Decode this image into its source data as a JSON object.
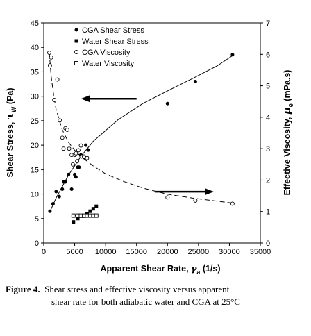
{
  "chart_data": {
    "type": "scatter",
    "xlabel_main": "Apparent Shear Rate, ",
    "xlabel_sym": "γ",
    "xlabel_sub": "a",
    "xlabel_unit": " (1/s)",
    "ylabel_main": "Shear Stress, ",
    "ylabel_sym": "τ",
    "ylabel_sub": "W",
    "ylabel_unit": " (Pa)",
    "y2label_main": "Effective Viscosity, ",
    "y2label_sym": "μ",
    "y2label_sub": "e",
    "y2label_unit": " (mPa.s)",
    "xlim": [
      0,
      35000
    ],
    "ylim": [
      0,
      45
    ],
    "y2lim": [
      0,
      7
    ],
    "x_ticks": [
      "0",
      "5000",
      "10000",
      "15000",
      "20000",
      "25000",
      "30000",
      "35000"
    ],
    "y_ticks": [
      "0",
      "5",
      "10",
      "15",
      "20",
      "25",
      "30",
      "35",
      "40",
      "45"
    ],
    "y2_ticks": [
      "0",
      "1",
      "2",
      "3",
      "4",
      "5",
      "6",
      "7"
    ],
    "grid": false,
    "legend_position": "top-left",
    "series": [
      {
        "name": "CGA Shear Stress",
        "marker": "filled-circle",
        "axis": "left",
        "points": [
          [
            1000,
            6.5
          ],
          [
            1500,
            8
          ],
          [
            2000,
            10.5
          ],
          [
            2500,
            9.5
          ],
          [
            3000,
            11
          ],
          [
            3200,
            12.5
          ],
          [
            3500,
            12.5
          ],
          [
            4000,
            14
          ],
          [
            4500,
            11
          ],
          [
            5000,
            14
          ],
          [
            5200,
            13.5
          ],
          [
            5500,
            15.5
          ],
          [
            5700,
            15.5
          ],
          [
            6000,
            18
          ],
          [
            6500,
            17.5
          ],
          [
            6800,
            20
          ],
          [
            7000,
            17.5
          ],
          [
            7200,
            19
          ],
          [
            20000,
            28.5
          ],
          [
            24500,
            33
          ],
          [
            30500,
            38.5
          ]
        ]
      },
      {
        "name": "Water Shear Stress",
        "marker": "filled-square",
        "axis": "left",
        "points": [
          [
            4800,
            4.3
          ],
          [
            5500,
            5
          ],
          [
            6000,
            5.5
          ],
          [
            6500,
            5.5
          ],
          [
            7000,
            6
          ],
          [
            7500,
            6.5
          ],
          [
            8000,
            7
          ],
          [
            8500,
            7.5
          ]
        ]
      },
      {
        "name": "CGA Viscosity",
        "marker": "open-circle",
        "axis": "right",
        "points": [
          [
            900,
            6.05
          ],
          [
            1000,
            5.65
          ],
          [
            1200,
            5.9
          ],
          [
            1700,
            4.55
          ],
          [
            2200,
            5.2
          ],
          [
            2600,
            3.9
          ],
          [
            3000,
            3.35
          ],
          [
            3200,
            3.0
          ],
          [
            3500,
            3.65
          ],
          [
            3800,
            3.6
          ],
          [
            4100,
            3.0
          ],
          [
            4500,
            2.8
          ],
          [
            4700,
            2.5
          ],
          [
            5000,
            2.8
          ],
          [
            5200,
            2.85
          ],
          [
            5400,
            2.6
          ],
          [
            5600,
            2.95
          ],
          [
            6000,
            3.1
          ],
          [
            6100,
            2.75
          ],
          [
            6500,
            2.75
          ],
          [
            7000,
            2.7
          ],
          [
            20000,
            1.45
          ],
          [
            24500,
            1.35
          ],
          [
            30500,
            1.25
          ]
        ]
      },
      {
        "name": "Water Viscosity",
        "marker": "open-square",
        "axis": "right",
        "points": [
          [
            4800,
            0.87
          ],
          [
            5500,
            0.87
          ],
          [
            6000,
            0.87
          ],
          [
            6500,
            0.87
          ],
          [
            7000,
            0.87
          ],
          [
            7500,
            0.87
          ],
          [
            8000,
            0.87
          ],
          [
            8500,
            0.87
          ]
        ]
      }
    ],
    "trend_lines": [
      {
        "for": "CGA Shear Stress",
        "style": "solid",
        "axis": "left",
        "points": [
          [
            1000,
            6.4
          ],
          [
            2000,
            9.2
          ],
          [
            4000,
            13.9
          ],
          [
            6000,
            17.7
          ],
          [
            8000,
            20.8
          ],
          [
            12000,
            25.2
          ],
          [
            16000,
            28.5
          ],
          [
            20000,
            31.1
          ],
          [
            24000,
            33.6
          ],
          [
            28000,
            36.2
          ],
          [
            30500,
            38.3
          ]
        ]
      },
      {
        "for": "CGA Viscosity",
        "style": "dashed",
        "axis": "right",
        "points": [
          [
            900,
            6.05
          ],
          [
            1200,
            5.3
          ],
          [
            1600,
            4.7
          ],
          [
            2000,
            4.25
          ],
          [
            3000,
            3.6
          ],
          [
            4000,
            3.2
          ],
          [
            5000,
            2.95
          ],
          [
            6000,
            2.75
          ],
          [
            8000,
            2.45
          ],
          [
            10000,
            2.2
          ],
          [
            13000,
            1.95
          ],
          [
            16000,
            1.75
          ],
          [
            20000,
            1.55
          ],
          [
            24000,
            1.43
          ],
          [
            28000,
            1.33
          ],
          [
            30500,
            1.27
          ]
        ]
      }
    ],
    "annotations": [
      {
        "type": "arrow",
        "direction": "left",
        "meaning": "points to left axis (shear stress)",
        "y_axis": "left",
        "y": 29.5,
        "x_from": 15000,
        "x_to": 6000
      },
      {
        "type": "arrow",
        "direction": "right",
        "meaning": "points to right axis (viscosity)",
        "y_axis": "right",
        "y": 1.63,
        "x_from": 18000,
        "x_to": 27500
      }
    ]
  },
  "caption": {
    "label": "Figure 4.",
    "text_line1": "Shear stress and effective viscosity versus apparent",
    "text_line2": "shear rate for both adiabatic water and CGA at 25°C"
  }
}
